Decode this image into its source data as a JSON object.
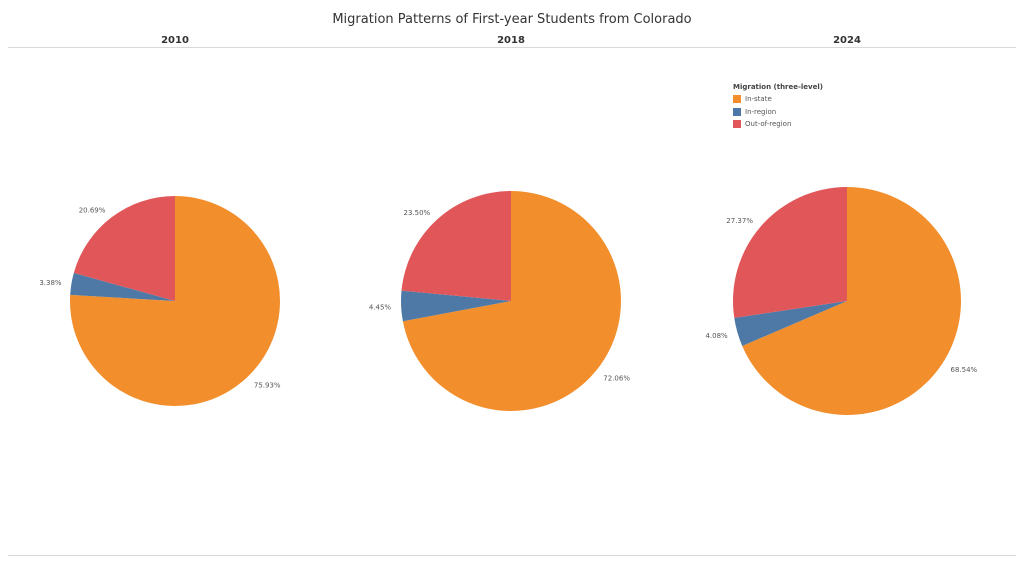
{
  "title": "Migration Patterns of First-year Students from Colorado",
  "legend": {
    "title": "Migration (three-level)",
    "items": [
      {
        "label": "In-state",
        "color": "#f28e2b"
      },
      {
        "label": "In-region",
        "color": "#4e79a7"
      },
      {
        "label": "Out-of-region",
        "color": "#e15759"
      }
    ]
  },
  "chart_data": [
    {
      "type": "pie",
      "title": "2010",
      "categories": [
        "In-state",
        "In-region",
        "Out-of-region"
      ],
      "values": [
        75.93,
        3.38,
        20.69
      ],
      "labels": [
        "75.93%",
        "3.38%",
        "20.69%"
      ]
    },
    {
      "type": "pie",
      "title": "2018",
      "categories": [
        "In-state",
        "In-region",
        "Out-of-region"
      ],
      "values": [
        72.06,
        4.45,
        23.5
      ],
      "labels": [
        "72.06%",
        "4.45%",
        "23.50%"
      ]
    },
    {
      "type": "pie",
      "title": "2024",
      "categories": [
        "In-state",
        "In-region",
        "Out-of-region"
      ],
      "values": [
        68.54,
        4.08,
        27.37
      ],
      "labels": [
        "68.54%",
        "4.08%",
        "27.37%"
      ]
    }
  ]
}
